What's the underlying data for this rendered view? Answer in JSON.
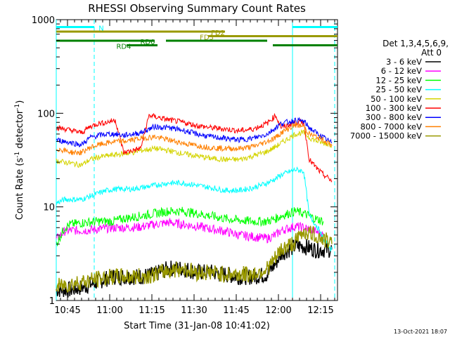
{
  "chart_data": {
    "type": "line",
    "title": "RHESSI Observing Summary Count Rates",
    "xlabel": "Start Time (31-Jan-08 10:41:02)",
    "ylabel_main": "Count Rate (s",
    "ylabel_sup1": "-1",
    "ylabel_mid": " detector",
    "ylabel_sup2": "-1",
    "ylabel_end": ")",
    "yscale": "log",
    "ylim": [
      1,
      1000
    ],
    "xlim_minutes": [
      0,
      100
    ],
    "ytick_labels": [
      "1",
      "10",
      "100",
      "1000"
    ],
    "xtick_labels": [
      "10:45",
      "11:00",
      "11:15",
      "11:30",
      "11:45",
      "12:00",
      "12:15"
    ],
    "xtick_minutes": [
      4,
      19,
      34,
      49,
      64,
      79,
      94
    ],
    "legend_header_1": "Det 1,3,4,5,6,9,",
    "legend_header_2": "Att 0",
    "legend_placement": "right",
    "series": [
      {
        "name": "3 - 6 keV",
        "color": "#000000",
        "x": [
          0,
          5,
          10,
          15,
          20,
          24,
          30,
          35,
          40,
          45,
          50,
          55,
          60,
          65,
          70,
          75,
          78,
          80,
          85,
          88,
          92,
          95,
          98
        ],
        "y": [
          1.3,
          1.3,
          1.4,
          1.6,
          1.8,
          1.8,
          1.8,
          1.9,
          2.2,
          2.2,
          2.0,
          2.0,
          1.9,
          1.8,
          1.8,
          1.9,
          2.5,
          3.2,
          3.8,
          3.8,
          3.5,
          3.5,
          3.5
        ]
      },
      {
        "name": "6 - 12 keV",
        "color": "#ff00ff",
        "x": [
          0,
          3,
          5,
          10,
          15,
          20,
          24,
          30,
          35,
          40,
          45,
          50,
          55,
          60,
          65,
          70,
          75,
          78,
          80,
          85,
          88,
          92,
          95
        ],
        "y": [
          4.5,
          5.5,
          5.6,
          5.6,
          5.8,
          6.0,
          6.0,
          6.1,
          6.5,
          6.8,
          6.5,
          6.2,
          5.8,
          5.5,
          5.0,
          4.8,
          4.6,
          5.0,
          5.6,
          6.2,
          6.0,
          5.5,
          5.0
        ]
      },
      {
        "name": "12 - 25 keV",
        "color": "#00ff00",
        "x": [
          0,
          3,
          5,
          10,
          15,
          20,
          24,
          30,
          35,
          40,
          45,
          50,
          55,
          60,
          65,
          70,
          75,
          78,
          80,
          85,
          88,
          92,
          95
        ],
        "y": [
          4.0,
          6.0,
          6.5,
          6.8,
          7.0,
          7.0,
          7.5,
          8.0,
          8.5,
          9.0,
          9.0,
          8.5,
          8.0,
          7.5,
          7.2,
          7.0,
          7.0,
          7.5,
          8.0,
          9.0,
          8.5,
          7.5,
          7.0
        ]
      },
      {
        "name": "25 - 50 keV",
        "color": "#00ffff",
        "x": [
          0,
          3,
          6,
          9,
          12,
          15,
          18,
          21,
          24,
          27,
          30,
          35,
          40,
          45,
          50,
          55,
          60,
          65,
          70,
          75,
          78,
          80,
          85,
          88,
          90,
          93,
          95,
          98
        ],
        "y": [
          11,
          12,
          12,
          12,
          13,
          14,
          15,
          15.5,
          15.5,
          15.5,
          16,
          17,
          18,
          18,
          17,
          16,
          15,
          15,
          16,
          18,
          20,
          22,
          25,
          24,
          8,
          6,
          4.5,
          3.5
        ]
      },
      {
        "name": "50 - 100 keV",
        "color": "#d4d400",
        "x": [
          0,
          3,
          6,
          9,
          12,
          15,
          18,
          21,
          24,
          27,
          30,
          35,
          40,
          45,
          50,
          55,
          60,
          65,
          70,
          75,
          78,
          80,
          85,
          88,
          90,
          93,
          95,
          98
        ],
        "y": [
          31,
          30,
          29,
          28,
          32,
          34,
          35,
          36,
          37,
          38,
          40,
          42,
          40,
          37,
          35,
          33,
          32,
          32,
          35,
          39,
          44,
          48,
          60,
          62,
          55,
          50,
          48,
          46
        ]
      },
      {
        "name": "100 - 300 keV",
        "color": "#ff0000",
        "x": [
          0,
          3,
          6,
          9,
          12,
          15,
          18,
          21,
          24,
          27,
          30,
          33,
          35,
          40,
          45,
          50,
          55,
          60,
          65,
          70,
          75,
          78,
          80,
          85,
          88,
          90,
          93,
          95,
          98
        ],
        "y": [
          70,
          68,
          65,
          62,
          72,
          78,
          80,
          85,
          38,
          40,
          42,
          95,
          92,
          85,
          80,
          74,
          70,
          68,
          65,
          68,
          78,
          95,
          70,
          80,
          80,
          32,
          25,
          22,
          19
        ]
      },
      {
        "name": "300 - 800 keV",
        "color": "#0000ff",
        "x": [
          0,
          3,
          6,
          9,
          12,
          15,
          18,
          21,
          24,
          27,
          30,
          35,
          40,
          45,
          50,
          55,
          60,
          65,
          70,
          75,
          78,
          80,
          85,
          88,
          90,
          93,
          95,
          98
        ],
        "y": [
          52,
          50,
          48,
          46,
          55,
          58,
          60,
          60,
          58,
          60,
          62,
          72,
          70,
          66,
          60,
          56,
          54,
          52,
          54,
          60,
          70,
          78,
          84,
          82,
          70,
          60,
          55,
          48
        ]
      },
      {
        "name": "800 - 7000 keV",
        "color": "#ff8000",
        "x": [
          0,
          3,
          6,
          9,
          12,
          15,
          18,
          21,
          24,
          27,
          30,
          35,
          40,
          45,
          50,
          55,
          60,
          65,
          70,
          75,
          78,
          80,
          85,
          88,
          90,
          93,
          95,
          98
        ],
        "y": [
          42,
          40,
          38,
          38,
          43,
          46,
          48,
          50,
          50,
          52,
          54,
          56,
          52,
          48,
          45,
          43,
          42,
          42,
          44,
          50,
          55,
          62,
          75,
          72,
          60,
          55,
          52,
          45
        ]
      },
      {
        "name": "7000 - 15000 keV",
        "color": "#999900",
        "x": [
          0,
          5,
          10,
          15,
          20,
          24,
          30,
          35,
          40,
          45,
          50,
          55,
          60,
          65,
          70,
          75,
          78,
          80,
          85,
          88,
          92,
          95,
          98
        ],
        "y": [
          1.4,
          1.5,
          1.6,
          1.7,
          1.8,
          1.8,
          1.8,
          1.9,
          2.1,
          2.2,
          2.0,
          2.0,
          1.9,
          1.9,
          1.9,
          2.2,
          2.8,
          3.5,
          4.2,
          5.5,
          5.0,
          4.5,
          4.0
        ]
      }
    ],
    "annotations": [
      {
        "label": "N",
        "color": "#00ffff",
        "segments": [
          [
            0,
            13.5
          ],
          [
            84,
            100
          ]
        ],
        "level": 1
      },
      {
        "label": "FD2",
        "color": "#999900",
        "segments": [
          [
            0,
            60
          ]
        ],
        "level": 2
      },
      {
        "label": "FD3",
        "color": "#999900",
        "segments": [
          [
            54,
            100
          ]
        ],
        "level": 3
      },
      {
        "label": "RD0",
        "color": "#008000",
        "segments": [
          [
            0,
            35
          ],
          [
            39,
            75
          ]
        ],
        "level": 4
      },
      {
        "label": "RD4",
        "color": "#008000",
        "segments": [
          [
            25,
            36
          ],
          [
            77,
            100
          ]
        ],
        "level": 5
      }
    ],
    "vlines": [
      {
        "x": 0,
        "color": "#00ffff",
        "style": "solid"
      },
      {
        "x": 13.5,
        "color": "#00ffff",
        "style": "dashed"
      },
      {
        "x": 84,
        "color": "#00ffff",
        "style": "solid"
      },
      {
        "x": 99,
        "color": "#00ffff",
        "style": "dashed"
      }
    ],
    "footer_date": "13-Oct-2021 18:07"
  }
}
